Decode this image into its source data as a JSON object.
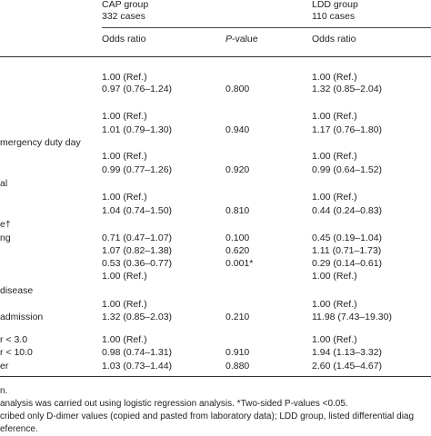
{
  "header": {
    "cap_group": "CAP group",
    "cap_cases": "332 cases",
    "ldd_group": "LDD group",
    "ldd_cases": "110 cases",
    "col_or1": "Odds ratio",
    "col_pv_italic": "P",
    "col_pv_rest": "-value",
    "col_or2": "Odds ratio"
  },
  "rows": [
    {
      "label": "",
      "or1": "1.00 (Ref.)",
      "pv": "",
      "or2": "1.00 (Ref.)"
    },
    {
      "label": "",
      "or1": "0.97 (0.76–1.24)",
      "pv": "0.800",
      "or2": "1.32 (0.85–2.04)"
    },
    {
      "label": "",
      "or1": "",
      "pv": "",
      "or2": ""
    },
    {
      "label": "",
      "or1": "1.00 (Ref.)",
      "pv": "",
      "or2": "1.00 (Ref.)"
    },
    {
      "label": "",
      "or1": "1.01 (0.79–1.30)",
      "pv": "0.940",
      "or2": "1.17 (0.76–1.80)"
    },
    {
      "label": "mergency duty day",
      "or1": "",
      "pv": "",
      "or2": ""
    },
    {
      "label": "",
      "or1": "1.00 (Ref.)",
      "pv": "",
      "or2": "1.00 (Ref.)"
    },
    {
      "label": "",
      "or1": "0.99 (0.77–1.26)",
      "pv": "0.920",
      "or2": "0.99 (0.64–1.52)"
    },
    {
      "label": "al",
      "or1": "",
      "pv": "",
      "or2": ""
    },
    {
      "label": "",
      "or1": "1.00 (Ref.)",
      "pv": "",
      "or2": "1.00 (Ref.)"
    },
    {
      "label": "",
      "or1": "1.04 (0.74–1.50)",
      "pv": "0.810",
      "or2": "0.44 (0.24–0.83)"
    },
    {
      "label": "e†",
      "or1": "",
      "pv": "",
      "or2": ""
    },
    {
      "label": "ng",
      "or1": "0.71 (0.47–1.07)",
      "pv": "0.100",
      "or2": "0.45 (0.19–1.04)"
    },
    {
      "label": "",
      "or1": "1.07 (0.82–1.38)",
      "pv": "0.620",
      "or2": "1.11 (0.71–1.73)"
    },
    {
      "label": "",
      "or1": "0.53 (0.36–0.77)",
      "pv": "0.001*",
      "or2": "0.29 (0.14–0.61)"
    },
    {
      "label": "",
      "or1": "1.00 (Ref.)",
      "pv": "",
      "or2": "1.00 (Ref.)"
    },
    {
      "label": " disease",
      "or1": "",
      "pv": "",
      "or2": ""
    },
    {
      "label": "",
      "or1": "1.00 (Ref.)",
      "pv": "",
      "or2": "1.00 (Ref.)"
    },
    {
      "label": " admission",
      "or1": "1.32 (0.85–2.03)",
      "pv": "0.210",
      "or2": "11.98 (7.43–19.30)"
    },
    {
      "label": "",
      "or1": "",
      "pv": "",
      "or2": ""
    },
    {
      "label": "r < 3.0",
      "or1": "1.00 (Ref.)",
      "pv": "",
      "or2": "1.00 (Ref.)"
    },
    {
      "label": "r < 10.0",
      "or1": "0.98 (0.74–1.31)",
      "pv": "0.910",
      "or2": "1.94 (1.13–3.32)"
    },
    {
      "label": "er",
      "or1": "1.03 (0.73–1.44)",
      "pv": "0.880",
      "or2": "2.60 (1.45–4.67)"
    }
  ],
  "notes": [
    "n.",
    "analysis was carried out using logistic regression analysis. *Two-sided P-values <0.05.",
    "cribed only D-dimer values (copied and pasted from laboratory data); LDD group, listed differential diag",
    "eference."
  ]
}
